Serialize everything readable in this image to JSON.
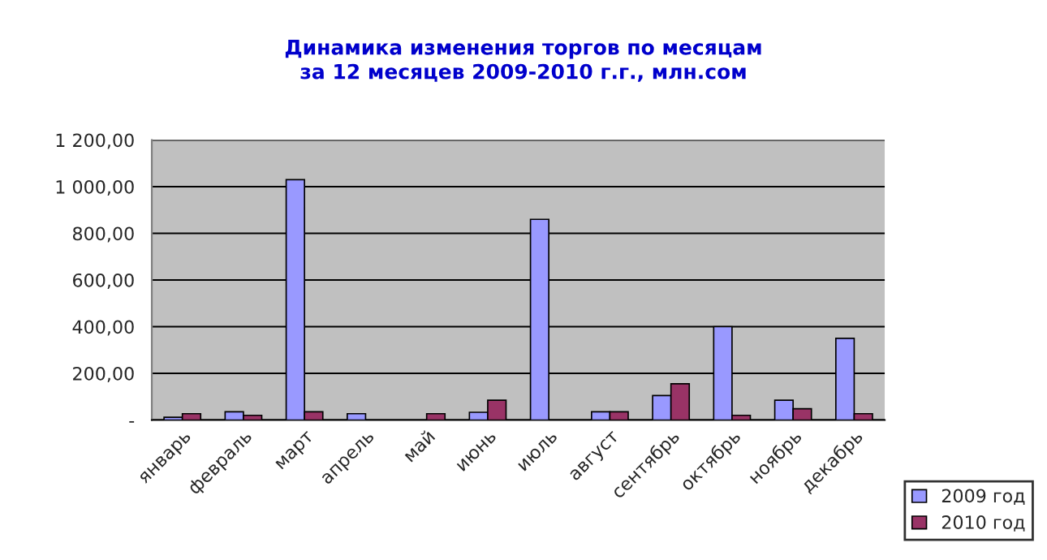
{
  "chart_data": {
    "type": "bar",
    "title": "Динамика изменения торгов по месяцам\nза 12 месяцев 2009-2010 г.г., млн.сом",
    "categories": [
      "январь",
      "февраль",
      "март",
      "апрель",
      "май",
      "июнь",
      "июль",
      "август",
      "сентябрь",
      "октябрь",
      "ноябрь",
      "декабрь"
    ],
    "series": [
      {
        "name": "2009 год",
        "color": "#9999ff",
        "values": [
          12,
          35,
          1030,
          27,
          0,
          33,
          860,
          35,
          105,
          400,
          85,
          350
        ]
      },
      {
        "name": "2010 год",
        "color": "#993366",
        "values": [
          27,
          20,
          35,
          0,
          27,
          85,
          0,
          35,
          155,
          20,
          48,
          27
        ]
      }
    ],
    "ylim": [
      0,
      1200
    ],
    "yticks": [
      {
        "value": 0,
        "label": "-"
      },
      {
        "value": 200,
        "label": "200,00"
      },
      {
        "value": 400,
        "label": "400,00"
      },
      {
        "value": 600,
        "label": "600,00"
      },
      {
        "value": 800,
        "label": "800,00"
      },
      {
        "value": 1000,
        "label": "1 000,00"
      },
      {
        "value": 1200,
        "label": "1 200,00"
      }
    ],
    "grid": "y",
    "legend": "bottom right"
  }
}
